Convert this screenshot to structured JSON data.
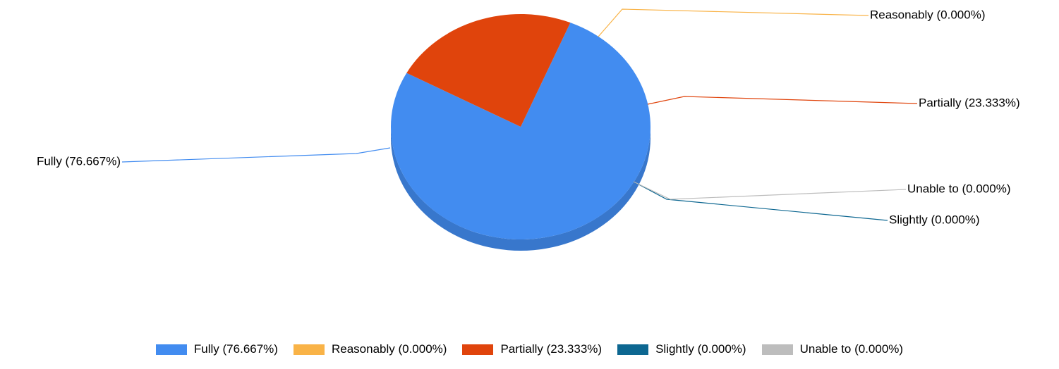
{
  "chart_data": {
    "type": "pie",
    "style": "3d",
    "categories": [
      "Fully",
      "Reasonably",
      "Partially",
      "Slightly",
      "Unable to"
    ],
    "values": [
      76.667,
      0.0,
      23.333,
      0.0,
      0.0
    ],
    "labels": [
      "Fully (76.667%)",
      "Reasonably (0.000%)",
      "Partially (23.333%)",
      "Slightly (0.000%)",
      "Unable to (0.000%)"
    ],
    "colors": [
      "#428cf0",
      "#f9b347",
      "#e0440c",
      "#0d6791",
      "#bdbdbd"
    ],
    "legend_placement": "bottom",
    "title": ""
  }
}
